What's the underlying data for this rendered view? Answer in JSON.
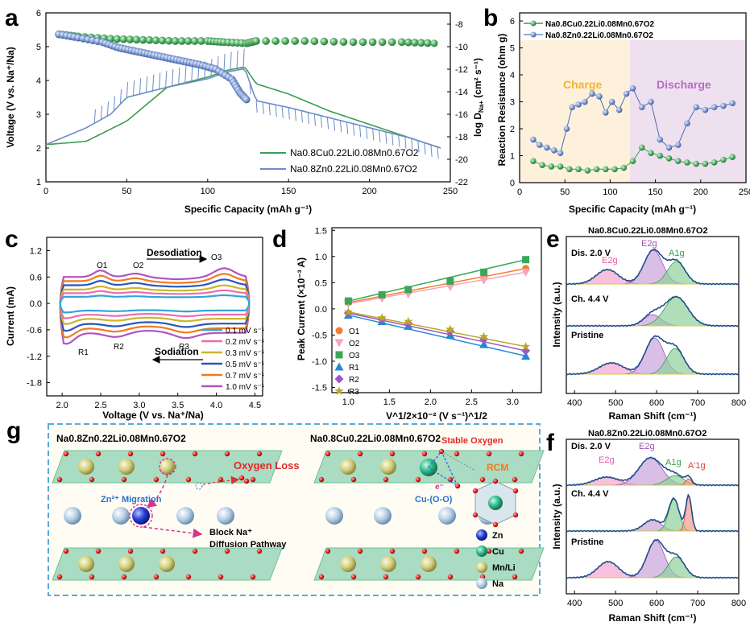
{
  "panels": {
    "a": {
      "label": "a",
      "xlabel": "Specific Capacity (mAh g⁻¹)",
      "ylabel": "Voltage (V vs. Na⁺/Na)",
      "y2label": "log D",
      "y2label_sub": "Na+",
      "y2label_unit": " (cm² s⁻¹)",
      "legend": [
        "Na0.8Cu0.22Li0.08Mn0.67O2",
        "Na0.8Zn0.22Li0.08Mn0.67O2"
      ]
    },
    "b": {
      "label": "b",
      "xlabel": "Specific Capacity (mAh g⁻¹)",
      "ylabel": "Reaction Resistance (ohm g)",
      "charge_label": "Charge",
      "discharge_label": "Discharge",
      "legend": [
        "Na0.8Cu0.22Li0.08Mn0.67O2",
        "Na0.8Zn0.22Li0.08Mn0.67O2"
      ]
    },
    "c": {
      "label": "c",
      "xlabel": "Voltage (V vs. Na⁺/Na)",
      "ylabel": "Current (mA)",
      "desodiation": "Desodiation",
      "sodiation": "Sodiation",
      "peaks": [
        "O1",
        "O2",
        "O3",
        "R1",
        "R2",
        "R3"
      ],
      "legend": [
        "0.1 mV s⁻¹",
        "0.2 mV s⁻¹",
        "0.3 mV s⁻¹",
        "0.5 mV s⁻¹",
        "0.7 mV s⁻¹",
        "1.0 mV s⁻¹"
      ]
    },
    "d": {
      "label": "d",
      "xlabel": "V^1/2×10⁻² (V s⁻¹)^1/2",
      "ylabel": "Peak Current (×10⁻³ A)",
      "legend": [
        "O1",
        "O2",
        "O3",
        "R1",
        "R2",
        "R3"
      ]
    },
    "e": {
      "label": "e",
      "title": "Na0.8Cu0.22Li0.08Mn0.67O2",
      "xlabel": "Raman Shift (cm⁻¹)",
      "ylabel": "Intensity (a.u.)",
      "traces": [
        "Dis. 2.0 V",
        "Ch. 4.4 V",
        "Pristine"
      ],
      "peaks": [
        "E2g",
        "E2g",
        "A1g"
      ]
    },
    "f": {
      "label": "f",
      "title": "Na0.8Zn0.22Li0.08Mn0.67O2",
      "xlabel": "Raman Shift (cm⁻¹)",
      "ylabel": "Intensity (a.u.)",
      "traces": [
        "Dis. 2.0 V",
        "Ch. 4.4 V",
        "Pristine"
      ],
      "peaks": [
        "E2g",
        "E2g",
        "A1g",
        "A'1g"
      ]
    },
    "g": {
      "label": "g",
      "left_title": "Na0.8Zn0.22Li0.08Mn0.67O2",
      "right_title": "Na0.8Cu0.22Li0.08Mn0.67O2",
      "oxygen_loss": "Oxygen Loss",
      "zn_migration": "Zn²⁺ Migration",
      "block_line1": "Block Na⁺",
      "block_line2": "Diffusion Pathway",
      "stable_oxygen": "Stable Oxygen",
      "rcm": "RCM",
      "cu_oo": "Cu-(O-O)",
      "legend": [
        "Zn",
        "Cu",
        "Mn/Li",
        "Na"
      ]
    }
  },
  "colors": {
    "green": "#3a9e4f",
    "blue": "#6b8cc7",
    "charge_bg": "#fdf1dc",
    "discharge_bg": "#efe0ef",
    "charge_text": "#f2b530",
    "discharge_text": "#b86bc4"
  },
  "chart_data": [
    {
      "type": "line",
      "panel": "a",
      "x_ticks": [
        "0",
        "50",
        "100",
        "150",
        "200",
        "250"
      ],
      "y_ticks": [
        "1",
        "2",
        "3",
        "4",
        "5",
        "6"
      ],
      "y2_ticks": [
        "-8",
        "-10",
        "-12",
        "-14",
        "-16",
        "-18",
        "-20",
        "-22"
      ],
      "xlim": [
        0,
        250
      ],
      "ylim": [
        1,
        6
      ],
      "y2lim": [
        -22,
        -7
      ],
      "series": [
        {
          "name": "Na0.8Cu0.22Li0.08Mn0.67O2",
          "x": [
            0,
            25,
            50,
            75,
            100,
            112,
            123,
            130,
            150,
            175,
            200,
            225,
            244
          ],
          "y": [
            2.1,
            2.2,
            2.8,
            3.8,
            4.1,
            4.3,
            4.4,
            3.9,
            3.6,
            3.1,
            2.7,
            2.3,
            2.0
          ]
        },
        {
          "name": "Na0.8Zn0.22Li0.08Mn0.67O2",
          "x": [
            0,
            25,
            40,
            50,
            75,
            100,
            112,
            123,
            130,
            150,
            175,
            200,
            225,
            244
          ],
          "y": [
            2.1,
            2.6,
            3.0,
            3.5,
            3.8,
            4.05,
            4.25,
            4.35,
            3.4,
            3.2,
            2.9,
            2.6,
            2.3,
            2.0
          ]
        },
        {
          "name": "logD Cu",
          "axis": "y2",
          "x": [
            8,
            20,
            40,
            60,
            80,
            100,
            110,
            124,
            130,
            160,
            190,
            220,
            240
          ],
          "y": [
            -8.9,
            -9.1,
            -9.3,
            -9.4,
            -9.5,
            -9.5,
            -9.6,
            -9.7,
            -9.5,
            -9.5,
            -9.6,
            -9.6,
            -9.7
          ]
        },
        {
          "name": "logD Zn",
          "axis": "y2",
          "x": [
            8,
            20,
            35,
            45,
            55,
            65,
            75,
            85,
            95,
            105,
            115,
            120,
            124
          ],
          "y": [
            -8.9,
            -9.2,
            -9.6,
            -10.1,
            -10.4,
            -10.7,
            -11.0,
            -11.3,
            -11.6,
            -12.0,
            -12.9,
            -14.1,
            -14.7
          ]
        }
      ]
    },
    {
      "type": "scatter",
      "panel": "b",
      "x_ticks": [
        "0",
        "50",
        "100",
        "150",
        "200",
        "250"
      ],
      "y_ticks": [
        "0",
        "1",
        "2",
        "3",
        "4",
        "5",
        "6"
      ],
      "xlim": [
        0,
        250
      ],
      "ylim": [
        0,
        6.3
      ],
      "series": [
        {
          "name": "Na0.8Cu0.22Li0.08Mn0.67O2",
          "x": [
            15,
            25,
            35,
            45,
            55,
            65,
            75,
            85,
            95,
            105,
            115,
            125,
            135,
            145,
            155,
            165,
            175,
            185,
            195,
            205,
            215,
            225,
            235
          ],
          "y": [
            0.8,
            0.65,
            0.6,
            0.6,
            0.5,
            0.5,
            0.45,
            0.5,
            0.5,
            0.5,
            0.55,
            0.8,
            1.3,
            1.1,
            1.0,
            0.9,
            0.8,
            0.75,
            0.7,
            0.7,
            0.75,
            0.85,
            0.95
          ]
        },
        {
          "name": "Na0.8Zn0.22Li0.08Mn0.67O2",
          "x": [
            15,
            22,
            30,
            38,
            45,
            52,
            58,
            65,
            72,
            80,
            88,
            95,
            102,
            110,
            118,
            125,
            135,
            145,
            155,
            165,
            175,
            185,
            195,
            205,
            215,
            225,
            235
          ],
          "y": [
            1.6,
            1.4,
            1.3,
            1.2,
            1.1,
            2.0,
            2.8,
            2.9,
            3.0,
            3.3,
            3.2,
            2.6,
            3.0,
            2.7,
            3.3,
            3.5,
            2.8,
            3.0,
            1.6,
            1.3,
            1.4,
            2.2,
            2.8,
            2.7,
            2.8,
            2.85,
            2.95
          ]
        }
      ]
    },
    {
      "type": "line",
      "panel": "c",
      "x_ticks": [
        "2.0",
        "2.5",
        "3.0",
        "3.5",
        "4.0",
        "4.5"
      ],
      "y_ticks": [
        "1.2",
        "0.6",
        "0.0",
        "-0.6",
        "-1.2",
        "-1.8"
      ],
      "xlim": [
        1.8,
        4.6
      ],
      "ylim": [
        -2.1,
        1.5
      ],
      "series": [
        {
          "name": "0.1 mV s⁻¹",
          "color": "#2ea6d9",
          "scale": 0.18
        },
        {
          "name": "0.2 mV s⁻¹",
          "color": "#f06ab0",
          "scale": 0.33
        },
        {
          "name": "0.3 mV s⁻¹",
          "color": "#c8b72a",
          "scale": 0.48
        },
        {
          "name": "0.5 mV s⁻¹",
          "color": "#2a56b8",
          "scale": 0.66
        },
        {
          "name": "0.7 mV s⁻¹",
          "color": "#f07a1e",
          "scale": 0.83
        },
        {
          "name": "1.0 mV s⁻¹",
          "color": "#b054c4",
          "scale": 1.0
        }
      ]
    },
    {
      "type": "scatter",
      "panel": "d",
      "x_ticks": [
        "1.0",
        "1.5",
        "2.0",
        "2.5",
        "3.0"
      ],
      "y_ticks": [
        "1.5",
        "1.0",
        "0.5",
        "0.0",
        "-0.5",
        "-1.0",
        "-1.5"
      ],
      "xlim": [
        0.8,
        3.35
      ],
      "ylim": [
        -1.6,
        1.55
      ],
      "x": [
        1.0,
        1.41,
        1.73,
        2.24,
        2.65,
        3.16
      ],
      "series": [
        {
          "name": "O1",
          "color": "#f57d2a",
          "marker": "circle",
          "values": [
            0.12,
            0.24,
            0.33,
            0.47,
            0.6,
            0.77
          ]
        },
        {
          "name": "O2",
          "color": "#f2a6b8",
          "marker": "tri-down",
          "values": [
            0.1,
            0.2,
            0.28,
            0.42,
            0.55,
            0.7
          ]
        },
        {
          "name": "O3",
          "color": "#3aa657",
          "marker": "square",
          "values": [
            0.15,
            0.27,
            0.37,
            0.53,
            0.7,
            0.94
          ]
        },
        {
          "name": "R1",
          "color": "#1f8ad1",
          "marker": "tri-up",
          "values": [
            -0.12,
            -0.24,
            -0.33,
            -0.5,
            -0.68,
            -0.9
          ]
        },
        {
          "name": "R2",
          "color": "#a155c8",
          "marker": "diamond",
          "values": [
            -0.08,
            -0.2,
            -0.28,
            -0.43,
            -0.58,
            -0.8
          ]
        },
        {
          "name": "R3",
          "color": "#b9a820",
          "marker": "star",
          "values": [
            -0.06,
            -0.17,
            -0.24,
            -0.39,
            -0.53,
            -0.72
          ]
        }
      ]
    },
    {
      "type": "line",
      "panel": "e",
      "x_ticks": [
        "400",
        "500",
        "600",
        "700",
        "800"
      ],
      "xlim": [
        380,
        800
      ]
    },
    {
      "type": "line",
      "panel": "f",
      "x_ticks": [
        "400",
        "500",
        "600",
        "700",
        "800"
      ],
      "xlim": [
        380,
        800
      ]
    }
  ]
}
